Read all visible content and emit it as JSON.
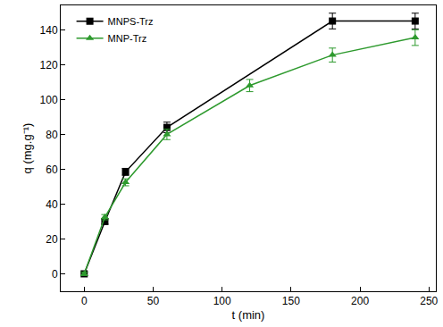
{
  "chart_data": {
    "type": "line",
    "x_label": "t (min)",
    "y_label": "q (mg.g⁻¹)",
    "xlim": [
      -17,
      255
    ],
    "xticks": [
      0,
      50,
      100,
      150,
      200,
      250
    ],
    "ylim": [
      -10,
      154
    ],
    "yticks": [
      0,
      20,
      40,
      60,
      80,
      100,
      120,
      140
    ],
    "grid": false,
    "legend": "top-left",
    "series": [
      {
        "name": "MNPS-Trz",
        "color": "#000000",
        "marker": "square",
        "line_style": "solid",
        "x": [
          0,
          15,
          30,
          60,
          180,
          240
        ],
        "values": [
          0,
          30,
          58.5,
          84,
          145,
          145
        ],
        "error": [
          1,
          1.5,
          2,
          3,
          4.5,
          4.5
        ]
      },
      {
        "name": "MNP-Trz",
        "color": "#2e9a2e",
        "marker": "triangle-up",
        "line_style": "solid",
        "x": [
          0,
          15,
          30,
          60,
          120,
          180,
          240
        ],
        "values": [
          0,
          32.5,
          52.5,
          80,
          108,
          125.5,
          135.5
        ],
        "error": [
          1,
          1.5,
          2,
          3,
          3.5,
          4,
          4.5
        ]
      }
    ]
  }
}
